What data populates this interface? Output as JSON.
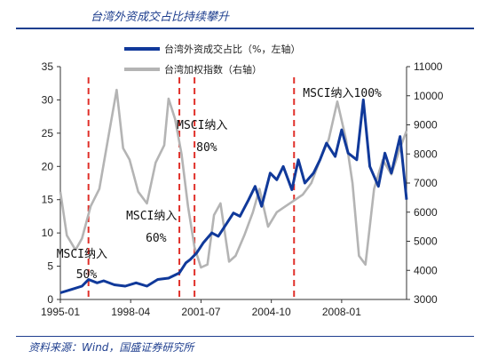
{
  "header": {
    "title": "台湾外资成交占比持续攀升"
  },
  "footer": {
    "source": "资料来源：Wind，国盛证券研究所"
  },
  "chart_data": {
    "type": "line",
    "title": "台湾外资成交占比持续攀升",
    "x_tick_labels": [
      "1995-01",
      "1998-04",
      "2001-07",
      "2004-10",
      "2008-01"
    ],
    "x_range": [
      1995.0,
      2011.0
    ],
    "left_axis": {
      "ticks": [
        0,
        5,
        10,
        15,
        20,
        25,
        30,
        35
      ],
      "range": [
        0,
        35
      ]
    },
    "right_axis": {
      "ticks": [
        3000,
        4000,
        5000,
        6000,
        7000,
        8000,
        9000,
        10000,
        11000
      ],
      "range": [
        3000,
        11000
      ]
    },
    "legend": {
      "placement": "top-right",
      "entries": [
        "台湾外资成交占比（%，左轴）",
        "台湾加权指数（右轴）"
      ]
    },
    "colors": {
      "share": "#10399a",
      "index": "#b4b4b4",
      "events": "#e0302a"
    },
    "series": [
      {
        "name": "台湾外资成交占比（%，左轴）",
        "axis": "left",
        "x": [
          1995.0,
          1995.5,
          1996.0,
          1996.3,
          1996.7,
          1997.0,
          1997.5,
          1998.0,
          1998.5,
          1999.0,
          1999.5,
          2000.0,
          2000.5,
          2000.8,
          2001.0,
          2001.3,
          2001.6,
          2002.0,
          2002.3,
          2002.7,
          2003.0,
          2003.3,
          2003.7,
          2004.0,
          2004.3,
          2004.7,
          2005.0,
          2005.3,
          2005.7,
          2006.0,
          2006.3,
          2006.7,
          2007.0,
          2007.3,
          2007.7,
          2008.0,
          2008.3,
          2008.7,
          2009.0,
          2009.3,
          2009.7,
          2010.0,
          2010.3,
          2010.7,
          2011.0
        ],
        "values": [
          1.0,
          1.5,
          2.0,
          3.0,
          2.5,
          2.8,
          2.2,
          2.0,
          2.5,
          2.0,
          3.0,
          3.2,
          4.0,
          5.5,
          6.0,
          7.0,
          8.5,
          10.0,
          9.5,
          11.5,
          13.0,
          12.5,
          15.0,
          17.0,
          14.0,
          19.0,
          18.0,
          20.0,
          16.5,
          21.0,
          17.5,
          19.0,
          21.0,
          23.5,
          21.5,
          25.5,
          22.0,
          21.0,
          30.0,
          20.0,
          17.0,
          22.0,
          19.0,
          24.5,
          15.0
        ]
      },
      {
        "name": "台湾加权指数（右轴）",
        "axis": "right",
        "x": [
          1995.0,
          1995.3,
          1995.7,
          1996.0,
          1996.4,
          1996.8,
          1997.2,
          1997.6,
          1997.9,
          1998.2,
          1998.6,
          1999.0,
          1999.4,
          1999.8,
          2000.0,
          2000.3,
          2000.6,
          2000.9,
          2001.2,
          2001.5,
          2001.8,
          2002.1,
          2002.4,
          2002.8,
          2003.1,
          2003.5,
          2003.9,
          2004.2,
          2004.6,
          2005.0,
          2005.4,
          2005.8,
          2006.2,
          2006.6,
          2007.0,
          2007.4,
          2007.8,
          2008.2,
          2008.5,
          2008.8,
          2009.1,
          2009.5,
          2009.9,
          2010.3,
          2010.7,
          2011.0
        ],
        "values": [
          6700,
          5200,
          4700,
          5100,
          6200,
          6800,
          8500,
          10200,
          8200,
          7800,
          6700,
          6300,
          7700,
          8300,
          9900,
          9200,
          8000,
          6200,
          4800,
          4100,
          4200,
          5900,
          6300,
          4300,
          4500,
          5200,
          6000,
          6800,
          5500,
          6000,
          6200,
          6400,
          6600,
          7000,
          7800,
          8500,
          9800,
          8500,
          7000,
          4500,
          4200,
          6800,
          7800,
          7300,
          8200,
          8800
        ]
      }
    ],
    "events": [
      {
        "x": 1996.3,
        "label_line1": "MSCI纳入",
        "label_line2": "50%"
      },
      {
        "x": 2000.5,
        "label_line1": "MSCI纳入",
        "label_line2": "60%"
      },
      {
        "x": 2001.2,
        "label_line1": "MSCI纳入",
        "label_line2": "80%"
      },
      {
        "x": 2005.8,
        "label_line1": "MSCI纳入100%",
        "label_line2": ""
      }
    ]
  }
}
